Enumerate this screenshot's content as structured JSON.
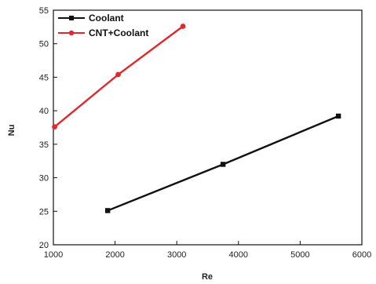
{
  "chart_data": {
    "type": "line",
    "xlabel": "Re",
    "ylabel": "Nu",
    "xlim": [
      1000,
      6000
    ],
    "ylim": [
      20,
      55
    ],
    "xticks": [
      1000,
      2000,
      3000,
      4000,
      5000,
      6000
    ],
    "yticks": [
      20,
      25,
      30,
      35,
      40,
      45,
      50,
      55
    ],
    "legend_position": "top-left",
    "grid": false,
    "series": [
      {
        "name": "Coolant",
        "color": "#111111",
        "marker": "square",
        "points": [
          [
            1880,
            25.1
          ],
          [
            3750,
            32.0
          ],
          [
            5620,
            39.2
          ]
        ]
      },
      {
        "name": "CNT+Coolant",
        "color": "#e0282e",
        "marker": "circle",
        "points": [
          [
            1020,
            37.6
          ],
          [
            2050,
            45.4
          ],
          [
            3100,
            52.6
          ]
        ]
      }
    ]
  }
}
